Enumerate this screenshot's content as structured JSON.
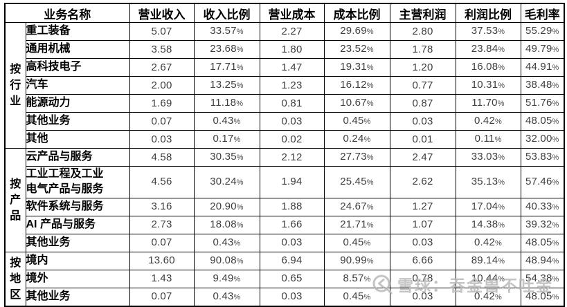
{
  "chart_data": {
    "type": "table",
    "title": "",
    "columns": [
      "业务名称",
      "营业收入",
      "收入比例",
      "营业成本",
      "成本比例",
      "主营利润",
      "利润比例",
      "毛利率"
    ],
    "groups": [
      {
        "label": "按行业",
        "rows": [
          {
            "name": "重工装备",
            "values": [
              "5.07",
              "33.57%",
              "2.27",
              "29.69%",
              "2.80",
              "37.53%",
              "55.29%"
            ]
          },
          {
            "name": "通用机械",
            "values": [
              "3.58",
              "23.68%",
              "1.80",
              "23.52%",
              "1.78",
              "23.84%",
              "49.79%"
            ]
          },
          {
            "name": "高科技电子",
            "values": [
              "2.67",
              "17.71%",
              "1.47",
              "19.31%",
              "1.20",
              "16.08%",
              "44.91%"
            ]
          },
          {
            "name": "汽车",
            "values": [
              "2.00",
              "13.25%",
              "1.23",
              "16.12%",
              "0.77",
              "10.31%",
              "38.48%"
            ]
          },
          {
            "name": "能源动力",
            "values": [
              "1.69",
              "11.18%",
              "0.81",
              "10.67%",
              "0.87",
              "11.70%",
              "51.76%"
            ]
          },
          {
            "name": "其他业务",
            "values": [
              "0.07",
              "0.43%",
              "0.03",
              "0.45%",
              "0.03",
              "0.42%",
              "48.05%"
            ]
          },
          {
            "name": "其他",
            "values": [
              "0.03",
              "0.17%",
              "0.02",
              "0.24%",
              "0.01",
              "0.11%",
              "32.00%"
            ]
          }
        ]
      },
      {
        "label": "按产品",
        "rows": [
          {
            "name": "云产品与服务",
            "values": [
              "4.58",
              "30.35%",
              "2.12",
              "27.73%",
              "2.47",
              "33.03%",
              "53.83%"
            ]
          },
          {
            "name": "工业工程及工业\n电气产品与服务",
            "values": [
              "4.56",
              "30.24%",
              "1.94",
              "25.45%",
              "2.62",
              "35.13%",
              "57.46%"
            ]
          },
          {
            "name": "软件系统与服务",
            "values": [
              "3.16",
              "20.90%",
              "1.88",
              "24.67%",
              "1.27",
              "17.04%",
              "40.33%"
            ]
          },
          {
            "name": "AI 产品与服务",
            "values": [
              "2.73",
              "18.08%",
              "1.66",
              "21.71%",
              "1.07",
              "14.38%",
              "39.32%"
            ]
          },
          {
            "name": "其他业务",
            "values": [
              "0.07",
              "0.43%",
              "0.03",
              "0.45%",
              "0.03",
              "0.42%",
              "48.05%"
            ]
          }
        ]
      },
      {
        "label": "按地区",
        "rows": [
          {
            "name": "境内",
            "values": [
              "13.60",
              "90.08%",
              "6.94",
              "90.99%",
              "6.66",
              "89.14%",
              "48.94%"
            ]
          },
          {
            "name": "境外",
            "values": [
              "1.43",
              "9.49%",
              "0.65",
              "8.57%",
              "0.78",
              "10.44%",
              "54.38%"
            ]
          },
          {
            "name": "其他业务",
            "values": [
              "0.07",
              "0.43%",
              "0.03",
              "0.45%",
              "0.03",
              "0.42%",
              "48.05%"
            ]
          }
        ]
      }
    ]
  },
  "watermark": {
    "text": "雪球：吞金兽不吐金",
    "logo": "xueqiu-camera-icon"
  },
  "colors": {
    "border": "#000000",
    "header_text": "#000000",
    "number_text": "#3d3d3d",
    "watermark": "#b8b8b8"
  }
}
